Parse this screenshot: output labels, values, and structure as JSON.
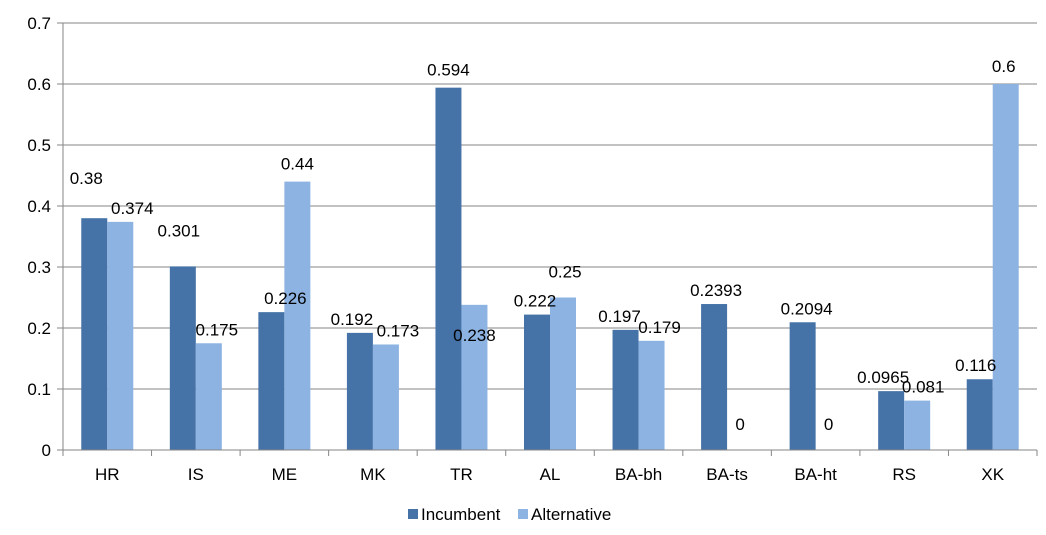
{
  "chart_data": {
    "type": "bar",
    "categories": [
      "HR",
      "IS",
      "ME",
      "MK",
      "TR",
      "AL",
      "BA-bh",
      "BA-ts",
      "BA-ht",
      "RS",
      "XK"
    ],
    "series": [
      {
        "name": "Incumbent",
        "color": "#4572a7",
        "values": [
          0.38,
          0.301,
          0.226,
          0.192,
          0.594,
          0.222,
          0.197,
          0.2393,
          0.2094,
          0.0965,
          0.116
        ],
        "labels": [
          "0.38",
          "0.301",
          "0.226",
          "0.192",
          "0.594",
          "0.222",
          "0.197",
          "0.2393",
          "0.2094",
          "0.0965",
          "0.116"
        ]
      },
      {
        "name": "Alternative",
        "color": "#8db3e2",
        "values": [
          0.374,
          0.175,
          0.44,
          0.173,
          0.238,
          0.25,
          0.179,
          0,
          0,
          0.081,
          0.6
        ],
        "labels": [
          "0.374",
          "0.175",
          "0.44",
          "0.173",
          "0.238",
          "0.25",
          "0.179",
          "0",
          "0",
          "0.081",
          "0.6"
        ]
      }
    ],
    "ylim": [
      0,
      0.7
    ],
    "yticks": [
      "0",
      "0.1",
      "0.2",
      "0.3",
      "0.4",
      "0.5",
      "0.6",
      "0.7"
    ],
    "grid": true,
    "legend": "bottom-center",
    "title": "",
    "xlabel": "",
    "ylabel": ""
  }
}
